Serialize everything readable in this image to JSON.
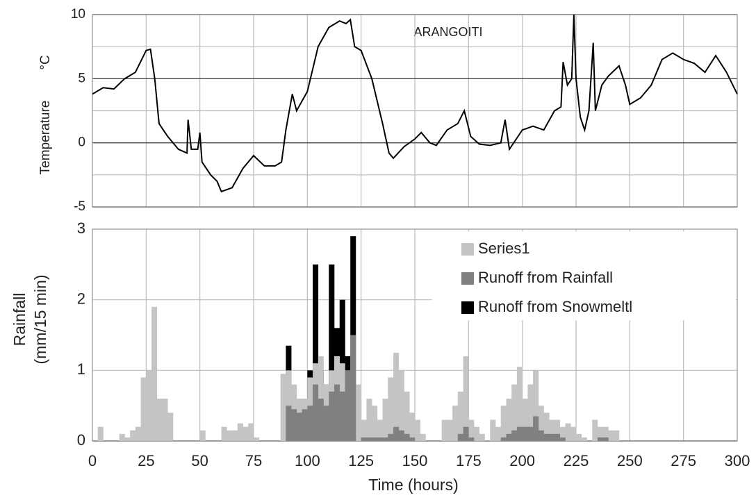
{
  "chart_data": [
    {
      "type": "line",
      "annotation": "ARANGOITI",
      "ylabel": "Temperature",
      "yunit": "°C",
      "color": "#000000",
      "xlim": [
        0,
        300
      ],
      "xticks": [
        0,
        25,
        50,
        75,
        100,
        125,
        150,
        175,
        200,
        225,
        250,
        275,
        300
      ],
      "ylim": [
        -5,
        10
      ],
      "yticks": [
        -5,
        0,
        5,
        10
      ],
      "minor_yticks": [
        -2.5,
        2.5,
        7.5
      ],
      "grid": true,
      "x": [
        0,
        5,
        10,
        15,
        20,
        25,
        27,
        29,
        31,
        35,
        40,
        44,
        44.5,
        46,
        49,
        50,
        51,
        55,
        58,
        60,
        65,
        70,
        75,
        80,
        85,
        88,
        90,
        93,
        95,
        100,
        105,
        110,
        115,
        118,
        120,
        122,
        125,
        130,
        135,
        138,
        140,
        145,
        150,
        153,
        157,
        160,
        165,
        170,
        173,
        176,
        180,
        185,
        190,
        192,
        194,
        200,
        205,
        210,
        215,
        218,
        219,
        221,
        223,
        224,
        225,
        227,
        229,
        231,
        233,
        234,
        237,
        240,
        245,
        248,
        250,
        255,
        260,
        265,
        270,
        275,
        280,
        285,
        290,
        295,
        300
      ],
      "values": [
        3.8,
        4.3,
        4.2,
        5.0,
        5.5,
        7.2,
        7.3,
        5.0,
        1.5,
        0.5,
        -0.5,
        -0.8,
        1.8,
        -0.5,
        -0.5,
        0.8,
        -1.5,
        -2.5,
        -3.0,
        -3.8,
        -3.5,
        -2.0,
        -1.0,
        -1.8,
        -1.8,
        -1.5,
        1.0,
        3.8,
        2.5,
        4.0,
        7.5,
        9.0,
        9.5,
        9.3,
        9.6,
        7.5,
        7.2,
        5.0,
        1.5,
        -0.8,
        -1.2,
        -0.3,
        0.3,
        0.8,
        0.0,
        -0.2,
        1.0,
        1.5,
        2.5,
        0.5,
        -0.1,
        -0.2,
        0,
        1.8,
        -0.5,
        1.0,
        1.3,
        1.0,
        2.5,
        2.8,
        6.3,
        4.5,
        5.0,
        10.0,
        5.0,
        2.0,
        1.0,
        2.5,
        7.8,
        2.5,
        4.5,
        5.2,
        6.0,
        4.5,
        3.0,
        3.5,
        4.5,
        6.5,
        7.0,
        6.5,
        6.2,
        5.5,
        6.8,
        5.5,
        3.8
      ]
    },
    {
      "type": "bar",
      "ylabel": [
        "Rainfall",
        "(mm/15 min)"
      ],
      "xlabel": "Time (hours)",
      "legend": "upper right",
      "grid": true,
      "xlim": [
        0,
        300
      ],
      "xticks": [
        0,
        25,
        50,
        75,
        100,
        125,
        150,
        175,
        200,
        225,
        250,
        275,
        300
      ],
      "ylim": [
        0,
        3
      ],
      "yticks": [
        0,
        1,
        2,
        3
      ],
      "x": [
        0,
        2.5,
        5,
        7.5,
        10,
        12.5,
        15,
        17.5,
        20,
        22.5,
        25,
        27.5,
        30,
        32.5,
        35,
        37.5,
        40,
        42.5,
        45,
        47.5,
        50,
        52.5,
        55,
        57.5,
        60,
        62.5,
        65,
        67.5,
        70,
        72.5,
        75,
        77.5,
        80,
        82.5,
        85,
        87.5,
        90,
        92.5,
        95,
        97.5,
        100,
        102.5,
        105,
        107.5,
        110,
        112.5,
        115,
        117.5,
        120,
        122.5,
        125,
        127.5,
        130,
        132.5,
        135,
        137.5,
        140,
        142.5,
        145,
        147.5,
        150,
        152.5,
        155,
        157.5,
        160,
        162.5,
        165,
        167.5,
        170,
        172.5,
        175,
        177.5,
        180,
        182.5,
        185,
        187.5,
        190,
        192.5,
        195,
        197.5,
        200,
        202.5,
        205,
        207.5,
        210,
        212.5,
        215,
        217.5,
        220,
        222.5,
        225,
        227.5,
        230,
        232.5,
        235,
        237.5,
        240,
        242.5,
        245
      ],
      "series": [
        {
          "name": "Series1",
          "color": "#c4c4c4",
          "values": [
            0,
            0.2,
            0,
            0,
            0,
            0.1,
            0.05,
            0.15,
            0.2,
            0.9,
            1.0,
            1.9,
            0.6,
            0.6,
            0.4,
            0,
            0,
            0,
            0,
            0,
            0.15,
            0,
            0,
            0,
            0.2,
            0.15,
            0.15,
            0.25,
            0.2,
            0.25,
            0.05,
            0,
            0,
            0,
            0,
            0.95,
            1.0,
            0.8,
            0.6,
            0.6,
            0.9,
            1.1,
            1.2,
            0.8,
            1.0,
            1.2,
            1.1,
            1.0,
            1.5,
            0.8,
            0.3,
            0.6,
            0.5,
            0.3,
            0.6,
            0.9,
            1.25,
            1.0,
            0.7,
            0.4,
            0.3,
            0.1,
            0,
            0,
            0,
            0.3,
            0.3,
            0.5,
            0.7,
            1.2,
            0.3,
            0.2,
            0.1,
            0,
            0.3,
            0.2,
            0.5,
            0.6,
            0.8,
            1.05,
            0.6,
            0.8,
            1.0,
            0.5,
            0.4,
            0.3,
            0.3,
            0.2,
            0.25,
            0.2,
            0.1,
            0.05,
            0,
            0.3,
            0.2,
            0.2,
            0.15,
            0.15,
            0
          ]
        },
        {
          "name": "Runoff from Rainfall",
          "color": "#808080",
          "values": [
            0,
            0,
            0,
            0,
            0,
            0,
            0,
            0,
            0,
            0,
            0,
            0,
            0,
            0,
            0,
            0,
            0,
            0,
            0,
            0,
            0,
            0,
            0,
            0,
            0,
            0,
            0,
            0,
            0,
            0,
            0,
            0,
            0,
            0,
            0,
            0,
            0.5,
            0.45,
            0.4,
            0.45,
            0.5,
            0.8,
            0.6,
            0.5,
            0.7,
            0.8,
            0.7,
            1.0,
            1.5,
            0,
            0.05,
            0.05,
            0.05,
            0.05,
            0.05,
            0.1,
            0.2,
            0.15,
            0.1,
            0.05,
            0,
            0,
            0,
            0,
            0,
            0,
            0,
            0,
            0.1,
            0.2,
            0.05,
            0,
            0,
            0,
            0,
            0,
            0.05,
            0.1,
            0.15,
            0.2,
            0.2,
            0.2,
            0.35,
            0.15,
            0.1,
            0.1,
            0.1,
            0.05,
            0,
            0,
            0,
            0,
            0,
            0,
            0.05,
            0.05,
            0,
            0,
            0
          ]
        },
        {
          "name": "Runoff from Snowmeltl",
          "color": "#000000",
          "values": [
            0,
            0,
            0,
            0,
            0,
            0,
            0,
            0,
            0,
            0,
            0,
            0,
            0,
            0,
            0,
            0,
            0,
            0,
            0,
            0,
            0,
            0,
            0,
            0,
            0,
            0,
            0,
            0,
            0,
            0,
            0,
            0,
            0,
            0,
            0,
            0,
            1.35,
            0.6,
            0.6,
            0.5,
            1.0,
            2.5,
            1.0,
            0.8,
            2.5,
            1.6,
            2.0,
            1.2,
            2.9,
            0,
            0,
            0,
            0,
            0,
            0,
            0,
            0,
            0,
            0,
            0,
            0,
            0,
            0,
            0,
            0,
            0,
            0,
            0,
            0,
            0,
            0,
            0,
            0,
            0,
            0,
            0,
            0,
            0,
            0,
            0,
            0,
            0,
            0,
            0,
            0,
            0,
            0,
            0,
            0,
            0,
            0,
            0,
            0,
            0,
            0,
            0,
            0,
            0,
            0
          ]
        }
      ]
    }
  ]
}
